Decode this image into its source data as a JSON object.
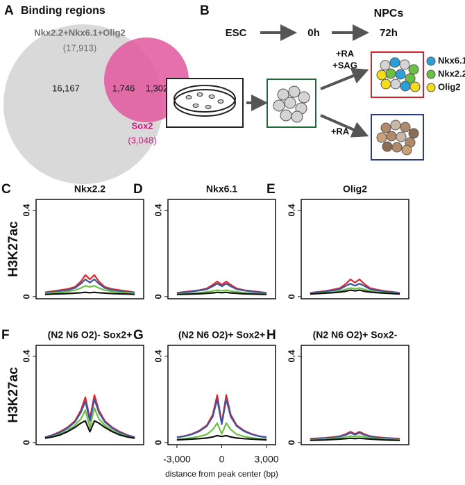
{
  "panels": {
    "A": {
      "letter": "A",
      "title": "Binding regions",
      "set1_name": "Nkx2.2+Nkx6.1+Olig2",
      "set1_total": "(17,913)",
      "set1_only": "16,167",
      "overlap": "1,746",
      "set2_only": "1,302",
      "set2_name": "Sox2",
      "set2_total": "(3,048)"
    },
    "B": {
      "letter": "B",
      "stage_header": "NPCs",
      "stages": [
        "ESC",
        "0h",
        "72h"
      ],
      "treatment1": [
        "+RA",
        "+SAG"
      ],
      "treatment2": "+RA",
      "markers": [
        {
          "label": "Nkx6.1",
          "color": "#2a9fd8"
        },
        {
          "label": "Nkx2.2",
          "color": "#6cbf44"
        },
        {
          "label": "Olig2",
          "color": "#f4dc1c"
        }
      ]
    }
  },
  "chart_data": [
    {
      "type": "line",
      "panel": "C",
      "title": "Nkx2.2",
      "ylabel": "H3K27ac",
      "x": [
        -3000,
        -2500,
        -2000,
        -1500,
        -1000,
        -600,
        -300,
        0,
        300,
        600,
        1000,
        1500,
        2000,
        2500,
        3000
      ],
      "xlim": [
        -3600,
        3600
      ],
      "ylim": [
        -0.01,
        0.45
      ],
      "yticks": [
        0,
        0.4
      ],
      "series": [
        {
          "color": "#e0262b",
          "values": [
            0.02,
            0.025,
            0.03,
            0.035,
            0.045,
            0.07,
            0.1,
            0.08,
            0.1,
            0.07,
            0.045,
            0.035,
            0.03,
            0.025,
            0.02
          ]
        },
        {
          "color": "#3b55a4",
          "values": [
            0.018,
            0.022,
            0.026,
            0.03,
            0.04,
            0.06,
            0.08,
            0.065,
            0.08,
            0.06,
            0.04,
            0.03,
            0.026,
            0.022,
            0.018
          ]
        },
        {
          "color": "#6cbf44",
          "values": [
            0.015,
            0.018,
            0.02,
            0.024,
            0.03,
            0.04,
            0.05,
            0.045,
            0.05,
            0.04,
            0.03,
            0.024,
            0.02,
            0.018,
            0.015
          ]
        },
        {
          "color": "#111111",
          "values": [
            0.01,
            0.012,
            0.013,
            0.014,
            0.016,
            0.018,
            0.02,
            0.018,
            0.02,
            0.018,
            0.016,
            0.014,
            0.013,
            0.012,
            0.01
          ]
        }
      ]
    },
    {
      "type": "line",
      "panel": "D",
      "title": "Nkx6.1",
      "x": [
        -3000,
        -2500,
        -2000,
        -1500,
        -1000,
        -600,
        -300,
        0,
        300,
        600,
        1000,
        1500,
        2000,
        2500,
        3000
      ],
      "xlim": [
        -3600,
        3600
      ],
      "ylim": [
        -0.01,
        0.45
      ],
      "yticks": [
        0,
        0.4
      ],
      "series": [
        {
          "color": "#e0262b",
          "values": [
            0.018,
            0.022,
            0.026,
            0.03,
            0.038,
            0.055,
            0.07,
            0.055,
            0.07,
            0.055,
            0.038,
            0.03,
            0.026,
            0.022,
            0.018
          ]
        },
        {
          "color": "#3b55a4",
          "values": [
            0.016,
            0.02,
            0.024,
            0.028,
            0.034,
            0.048,
            0.06,
            0.048,
            0.06,
            0.048,
            0.034,
            0.028,
            0.024,
            0.02,
            0.016
          ]
        },
        {
          "color": "#6cbf44",
          "values": [
            0.012,
            0.014,
            0.016,
            0.018,
            0.022,
            0.026,
            0.03,
            0.027,
            0.03,
            0.026,
            0.022,
            0.018,
            0.016,
            0.014,
            0.012
          ]
        },
        {
          "color": "#111111",
          "values": [
            0.01,
            0.011,
            0.012,
            0.013,
            0.015,
            0.017,
            0.02,
            0.018,
            0.02,
            0.017,
            0.015,
            0.013,
            0.012,
            0.011,
            0.01
          ]
        }
      ]
    },
    {
      "type": "line",
      "panel": "E",
      "title": "Olig2",
      "x": [
        -3000,
        -2500,
        -2000,
        -1500,
        -1000,
        -600,
        -300,
        0,
        300,
        600,
        1000,
        1500,
        2000,
        2500,
        3000
      ],
      "xlim": [
        -3600,
        3600
      ],
      "ylim": [
        -0.01,
        0.45
      ],
      "yticks": [
        0,
        0.4
      ],
      "series": [
        {
          "color": "#e0262b",
          "values": [
            0.018,
            0.022,
            0.026,
            0.032,
            0.04,
            0.06,
            0.08,
            0.065,
            0.08,
            0.06,
            0.04,
            0.032,
            0.026,
            0.022,
            0.018
          ]
        },
        {
          "color": "#3b55a4",
          "values": [
            0.016,
            0.02,
            0.024,
            0.028,
            0.035,
            0.05,
            0.06,
            0.05,
            0.06,
            0.05,
            0.035,
            0.028,
            0.024,
            0.02,
            0.016
          ]
        },
        {
          "color": "#6cbf44",
          "values": [
            0.014,
            0.016,
            0.018,
            0.022,
            0.026,
            0.034,
            0.04,
            0.036,
            0.04,
            0.034,
            0.026,
            0.022,
            0.018,
            0.016,
            0.014
          ]
        },
        {
          "color": "#111111",
          "values": [
            0.012,
            0.014,
            0.016,
            0.018,
            0.021,
            0.025,
            0.03,
            0.027,
            0.03,
            0.025,
            0.021,
            0.018,
            0.016,
            0.014,
            0.012
          ]
        }
      ]
    },
    {
      "type": "line",
      "panel": "F",
      "title": "(N2 N6 O2)-  Sox2+",
      "ylabel": "H3K27ac",
      "x": [
        -3000,
        -2500,
        -2000,
        -1500,
        -1000,
        -600,
        -300,
        0,
        300,
        600,
        1000,
        1500,
        2000,
        2500,
        3000
      ],
      "xlim": [
        -3600,
        3600
      ],
      "ylim": [
        -0.01,
        0.45
      ],
      "yticks": [
        0,
        0.4
      ],
      "series": [
        {
          "color": "#e0262b",
          "values": [
            0.025,
            0.035,
            0.05,
            0.07,
            0.1,
            0.15,
            0.21,
            0.11,
            0.22,
            0.15,
            0.1,
            0.07,
            0.05,
            0.035,
            0.025
          ]
        },
        {
          "color": "#3b55a4",
          "values": [
            0.024,
            0.033,
            0.047,
            0.066,
            0.095,
            0.14,
            0.19,
            0.1,
            0.2,
            0.14,
            0.095,
            0.066,
            0.047,
            0.033,
            0.024
          ]
        },
        {
          "color": "#6cbf44",
          "values": [
            0.02,
            0.028,
            0.04,
            0.055,
            0.08,
            0.11,
            0.15,
            0.07,
            0.16,
            0.11,
            0.08,
            0.055,
            0.04,
            0.028,
            0.02
          ]
        },
        {
          "color": "#111111",
          "values": [
            0.02,
            0.026,
            0.035,
            0.05,
            0.07,
            0.09,
            0.1,
            0.05,
            0.1,
            0.09,
            0.07,
            0.05,
            0.035,
            0.026,
            0.02
          ]
        }
      ]
    },
    {
      "type": "line",
      "panel": "G",
      "title": "(N2 N6 O2)+  Sox2+",
      "xlabel": "distance from peak center (bp)",
      "x": [
        -3000,
        -2500,
        -2000,
        -1500,
        -1000,
        -600,
        -300,
        0,
        300,
        600,
        1000,
        1500,
        2000,
        2500,
        3000
      ],
      "xlim": [
        -3600,
        3600
      ],
      "ylim": [
        -0.01,
        0.45
      ],
      "yticks": [
        0,
        0.4
      ],
      "xticks": [
        {
          "value": -3000,
          "label": "-3,000"
        },
        0,
        {
          "value": 3000,
          "label": "3,000"
        }
      ],
      "series": [
        {
          "color": "#e0262b",
          "values": [
            0.025,
            0.03,
            0.04,
            0.055,
            0.08,
            0.13,
            0.22,
            0.09,
            0.22,
            0.13,
            0.08,
            0.055,
            0.04,
            0.03,
            0.025
          ]
        },
        {
          "color": "#3b55a4",
          "values": [
            0.024,
            0.029,
            0.038,
            0.052,
            0.076,
            0.12,
            0.2,
            0.085,
            0.2,
            0.12,
            0.076,
            0.052,
            0.038,
            0.029,
            0.024
          ]
        },
        {
          "color": "#6cbf44",
          "values": [
            0.015,
            0.018,
            0.022,
            0.028,
            0.038,
            0.06,
            0.09,
            0.04,
            0.09,
            0.06,
            0.038,
            0.028,
            0.022,
            0.018,
            0.015
          ]
        },
        {
          "color": "#111111",
          "values": [
            0.012,
            0.014,
            0.016,
            0.018,
            0.021,
            0.026,
            0.032,
            0.028,
            0.032,
            0.026,
            0.021,
            0.018,
            0.016,
            0.014,
            0.012
          ]
        }
      ]
    },
    {
      "type": "line",
      "panel": "H",
      "title": "(N2 N6 O2)+  Sox2-",
      "x": [
        -3000,
        -2500,
        -2000,
        -1500,
        -1000,
        -600,
        -300,
        0,
        300,
        600,
        1000,
        1500,
        2000,
        2500,
        3000
      ],
      "xlim": [
        -3600,
        3600
      ],
      "ylim": [
        -0.01,
        0.45
      ],
      "yticks": [
        0,
        0.4
      ],
      "series": [
        {
          "color": "#e0262b",
          "values": [
            0.018,
            0.02,
            0.022,
            0.025,
            0.03,
            0.04,
            0.05,
            0.04,
            0.05,
            0.04,
            0.03,
            0.025,
            0.022,
            0.02,
            0.018
          ]
        },
        {
          "color": "#3b55a4",
          "values": [
            0.016,
            0.018,
            0.02,
            0.023,
            0.028,
            0.036,
            0.045,
            0.036,
            0.045,
            0.036,
            0.028,
            0.023,
            0.02,
            0.018,
            0.016
          ]
        },
        {
          "color": "#6cbf44",
          "values": [
            0.012,
            0.014,
            0.016,
            0.018,
            0.021,
            0.026,
            0.03,
            0.027,
            0.03,
            0.026,
            0.021,
            0.018,
            0.016,
            0.014,
            0.012
          ]
        },
        {
          "color": "#111111",
          "values": [
            0.01,
            0.011,
            0.012,
            0.014,
            0.016,
            0.018,
            0.02,
            0.018,
            0.02,
            0.018,
            0.016,
            0.014,
            0.012,
            0.011,
            0.01
          ]
        }
      ]
    }
  ]
}
